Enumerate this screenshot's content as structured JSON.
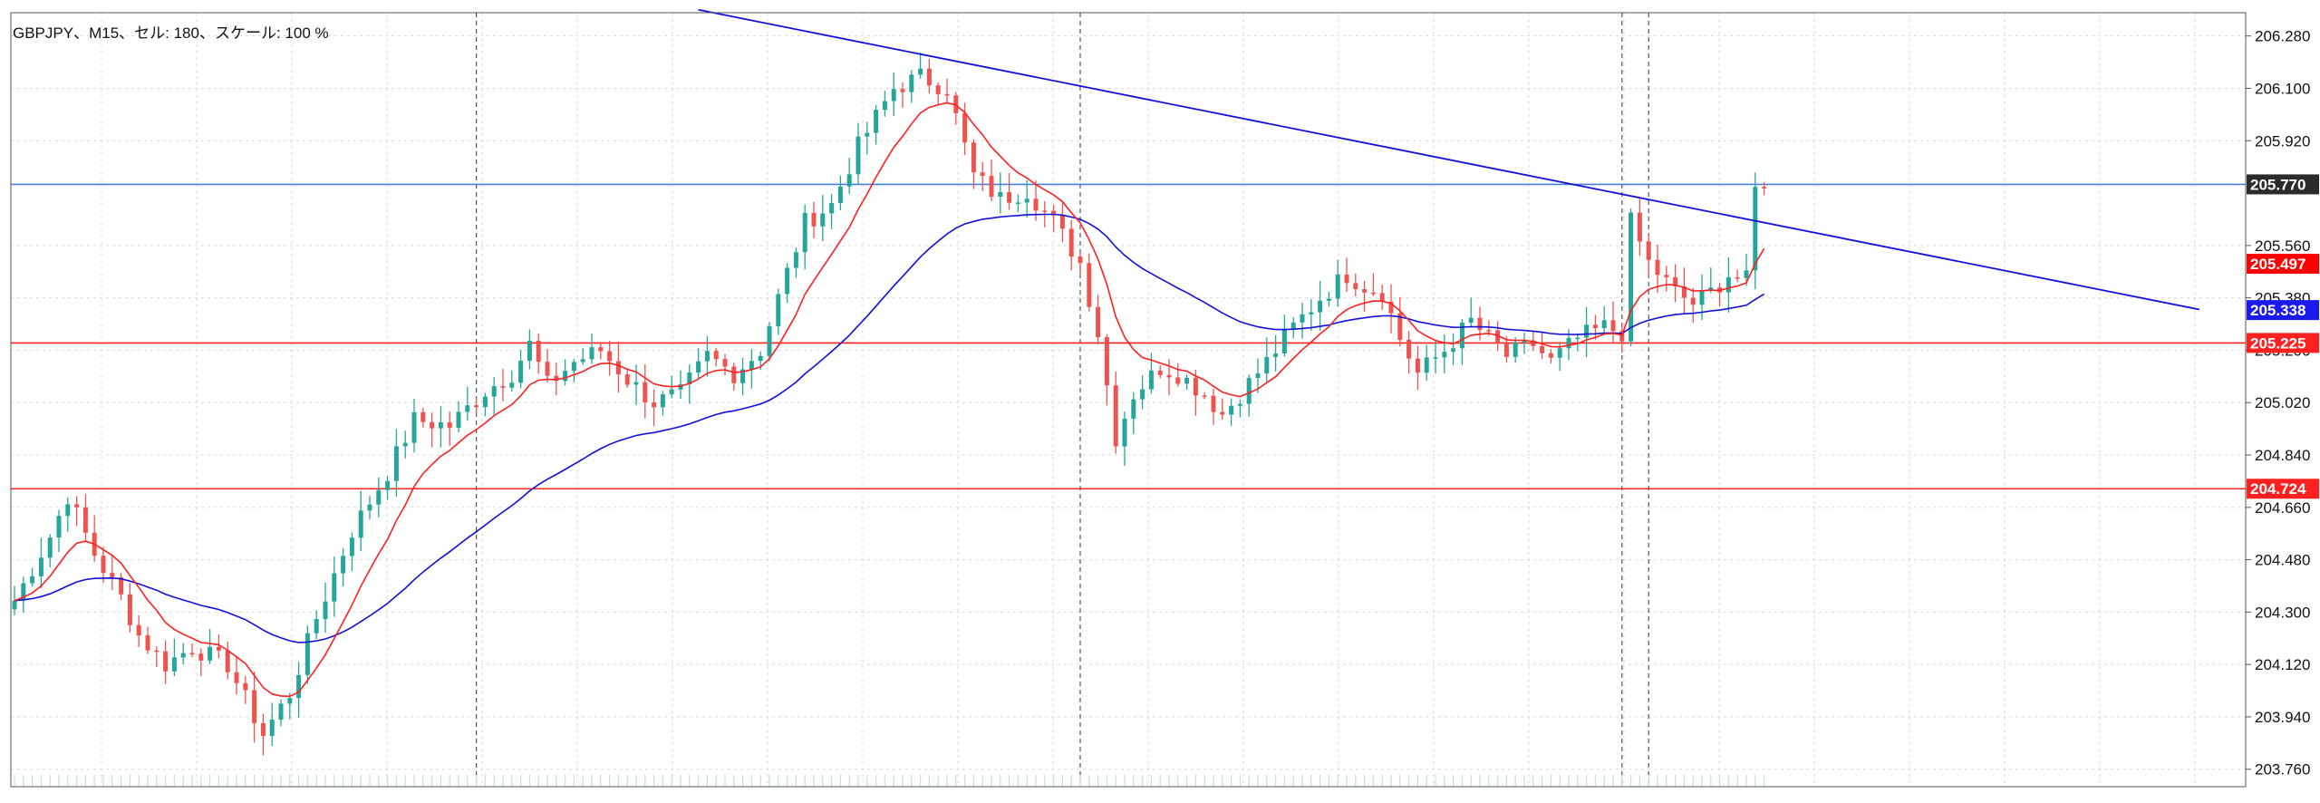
{
  "header": {
    "title": "GBPJPY、M15、セル: 180、スケール: 100 %"
  },
  "chart_data": {
    "type": "candlestick",
    "symbol": "GBPJPY",
    "timeframe": "M15",
    "ylim": [
      203.7,
      206.36
    ],
    "y_ticks": [
      "206.280",
      "206.100",
      "205.920",
      "205.560",
      "205.380",
      "205.200",
      "205.020",
      "204.840",
      "204.660",
      "204.480",
      "204.300",
      "204.120",
      "203.940",
      "203.760"
    ],
    "grid": true,
    "bar_count": 150,
    "anchors": [
      [
        0,
        204.34
      ],
      [
        4,
        204.56
      ],
      [
        6,
        204.7
      ],
      [
        9,
        204.5
      ],
      [
        12,
        204.35
      ],
      [
        14,
        204.22
      ],
      [
        17,
        204.12
      ],
      [
        20,
        204.18
      ],
      [
        24,
        204.12
      ],
      [
        28,
        203.88
      ],
      [
        31,
        204.02
      ],
      [
        34,
        204.28
      ],
      [
        38,
        204.58
      ],
      [
        42,
        204.78
      ],
      [
        45,
        204.96
      ],
      [
        49,
        204.94
      ],
      [
        53,
        205.06
      ],
      [
        56,
        205.12
      ],
      [
        58,
        205.22
      ],
      [
        60,
        205.08
      ],
      [
        63,
        205.16
      ],
      [
        66,
        205.2
      ],
      [
        69,
        205.1
      ],
      [
        72,
        205.02
      ],
      [
        75,
        205.05
      ],
      [
        78,
        205.18
      ],
      [
        81,
        205.12
      ],
      [
        84,
        205.2
      ],
      [
        86,
        205.38
      ],
      [
        89,
        205.64
      ],
      [
        92,
        205.7
      ],
      [
        95,
        205.9
      ],
      [
        97,
        206.0
      ],
      [
        99,
        206.1
      ],
      [
        102,
        206.14
      ],
      [
        105,
        206.1
      ],
      [
        108,
        205.8
      ],
      [
        111,
        205.72
      ],
      [
        114,
        205.75
      ],
      [
        117,
        205.64
      ],
      [
        120,
        205.5
      ],
      [
        122,
        205.26
      ],
      [
        124,
        204.9
      ],
      [
        126,
        205.05
      ],
      [
        129,
        205.14
      ],
      [
        131,
        205.12
      ],
      [
        134,
        205.05
      ],
      [
        136,
        204.98
      ],
      [
        138,
        205.05
      ],
      [
        141,
        205.16
      ],
      [
        144,
        205.28
      ],
      [
        147,
        205.38
      ],
      [
        150,
        205.46
      ],
      [
        152,
        205.42
      ],
      [
        154,
        205.4
      ],
      [
        156,
        205.24
      ],
      [
        158,
        205.12
      ],
      [
        161,
        205.2
      ],
      [
        164,
        205.3
      ],
      [
        166,
        205.24
      ],
      [
        168,
        205.18
      ],
      [
        171,
        205.22
      ],
      [
        173,
        205.16
      ],
      [
        176,
        205.24
      ],
      [
        179,
        205.28
      ],
      [
        181,
        205.26
      ],
      [
        182,
        205.64
      ],
      [
        184,
        205.5
      ],
      [
        187,
        205.4
      ],
      [
        189,
        205.36
      ],
      [
        191,
        205.4
      ],
      [
        193,
        205.46
      ],
      [
        195,
        205.44
      ],
      [
        196,
        205.75
      ],
      [
        197,
        205.78
      ]
    ],
    "ma_fast": {
      "name": "",
      "color": "#ff2020"
    },
    "ma_slow": {
      "name": "",
      "color": "#1010dd"
    },
    "trendline": {
      "from": [
        77,
        206.37
      ],
      "to": [
        246,
        205.34
      ],
      "color": "#1010dd"
    },
    "horizontal_lines": [
      {
        "price": 205.77,
        "label": "205.770",
        "color": "#4a7fd8",
        "label_bg": "#2b2b2b"
      },
      {
        "price": 205.225,
        "label": "205.225",
        "color": "#ff2020",
        "label_bg": "#ff2020"
      },
      {
        "price": 204.724,
        "label": "204.724",
        "color": "#ff2020",
        "label_bg": "#ff2020"
      }
    ],
    "price_labels": [
      {
        "price": 205.497,
        "label": "205.497",
        "bg": "#ff0000"
      },
      {
        "price": 205.338,
        "label": "205.338",
        "bg": "#1a1aee"
      }
    ],
    "vertical_dashed_lines": [
      52,
      120,
      181,
      184
    ],
    "colors": {
      "up": "#26a69a",
      "down": "#ef5350",
      "grid": "#d9d9d9",
      "axis": "#555555"
    }
  }
}
